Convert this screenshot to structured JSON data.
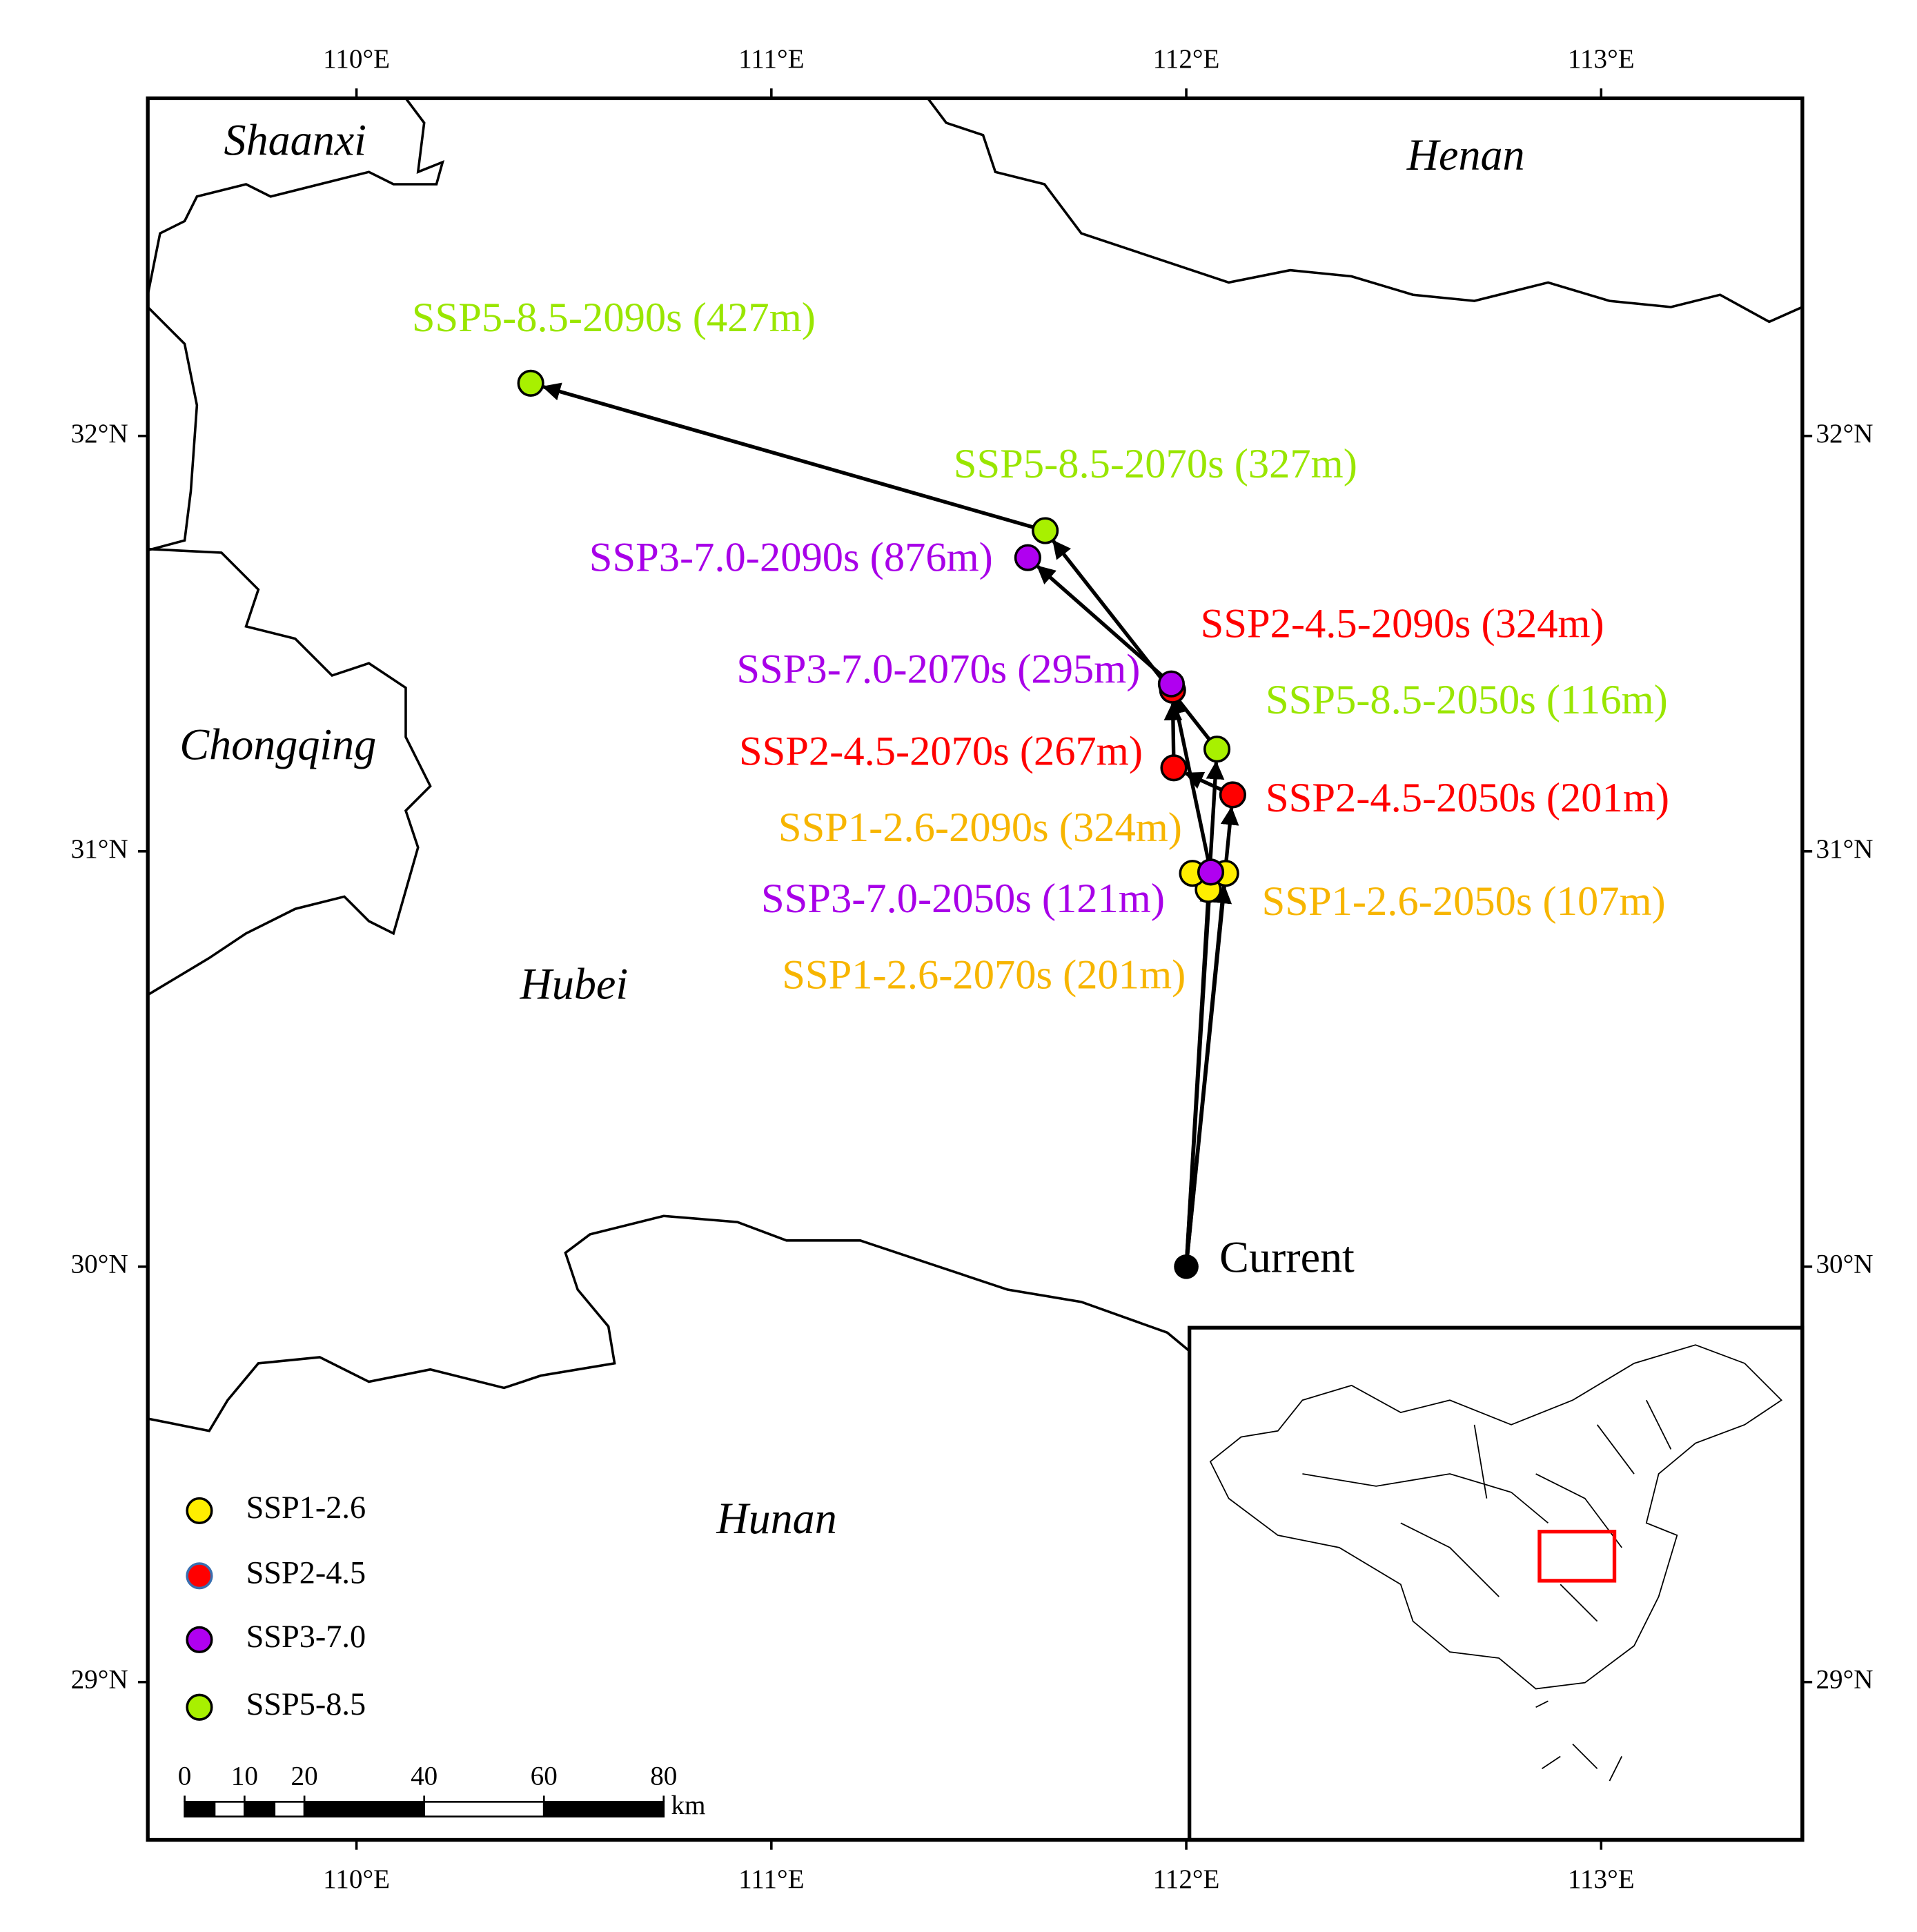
{
  "map": {
    "xlim": [
      109.497,
      113.485
    ],
    "ylim": [
      28.62,
      32.813
    ],
    "xticks": [
      {
        "value": 110,
        "label": "110°E"
      },
      {
        "value": 111,
        "label": "111°E"
      },
      {
        "value": 112,
        "label": "112°E"
      },
      {
        "value": 113,
        "label": "113°E"
      }
    ],
    "yticks": [
      {
        "value": 29,
        "label": "29°N"
      },
      {
        "value": 30,
        "label": "30°N"
      },
      {
        "value": 31,
        "label": "31°N"
      },
      {
        "value": 32,
        "label": "32°N"
      }
    ],
    "regions": [
      "Shaanxi",
      "Henan",
      "Chongqing",
      "Hubei",
      "Hunan"
    ],
    "series": [
      {
        "name": "SSP1-2.6",
        "color": "#ffee00",
        "label_color": "#f7b500"
      },
      {
        "name": "SSP2-4.5",
        "color": "#ff0000",
        "label_color": "#ff0000"
      },
      {
        "name": "SSP3-7.0",
        "color": "#b000f0",
        "label_color": "#a800e8"
      },
      {
        "name": "SSP5-8.5",
        "color": "#a8f000",
        "label_color": "#99e600"
      }
    ],
    "current": {
      "label": "Current",
      "lon": 112.0,
      "lat": 30.0
    },
    "points": [
      {
        "series": 0,
        "label": "SSP1-2.6-2050s (107m)",
        "lon": 112.095,
        "lat": 30.947
      },
      {
        "series": 0,
        "label": "SSP1-2.6-2070s (201m)",
        "lon": 112.053,
        "lat": 30.908
      },
      {
        "series": 0,
        "label": "SSP1-2.6-2090s (324m)",
        "lon": 112.015,
        "lat": 30.947
      },
      {
        "series": 1,
        "label": "SSP2-4.5-2050s (201m)",
        "lon": 112.112,
        "lat": 31.136
      },
      {
        "series": 1,
        "label": "SSP2-4.5-2070s (267m)",
        "lon": 111.97,
        "lat": 31.201
      },
      {
        "series": 1,
        "label": "SSP2-4.5-2090s (324m)",
        "lon": 111.967,
        "lat": 31.388
      },
      {
        "series": 2,
        "label": "SSP3-7.0-2050s (121m)",
        "lon": 112.059,
        "lat": 30.95
      },
      {
        "series": 2,
        "label": "SSP3-7.0-2070s (295m)",
        "lon": 111.964,
        "lat": 31.403
      },
      {
        "series": 2,
        "label": "SSP3-7.0-2090s (876m)",
        "lon": 111.618,
        "lat": 31.707
      },
      {
        "series": 3,
        "label": "SSP5-8.5-2050s (116m)",
        "lon": 112.074,
        "lat": 31.246
      },
      {
        "series": 3,
        "label": "SSP5-8.5-2070s (327m)",
        "lon": 111.66,
        "lat": 31.772
      },
      {
        "series": 3,
        "label": "SSP5-8.5-2090s (427m)",
        "lon": 110.42,
        "lat": 32.127
      }
    ],
    "scale_bar": {
      "ticks": [
        0,
        10,
        20,
        40,
        60,
        80
      ],
      "unit": "km"
    }
  }
}
